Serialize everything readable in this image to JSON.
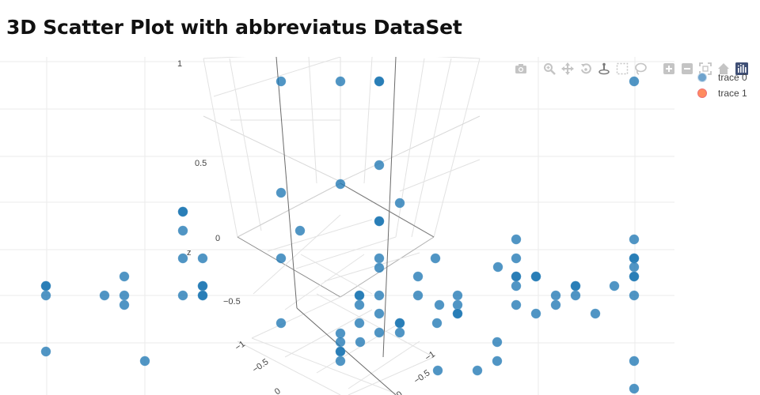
{
  "page": {
    "title": "3D Scatter Plot with abbreviatus DataSet"
  },
  "toolbar": {
    "icons": [
      "camera-icon",
      "zoom-icon",
      "pan-icon",
      "orbit-rotation-icon",
      "turntable-rotation-icon",
      "box-select-icon",
      "lasso-select-icon",
      "zoom-in-icon",
      "zoom-out-icon",
      "autoscale-icon",
      "reset-axes-icon",
      "plotly-logo"
    ]
  },
  "legend": {
    "items": [
      {
        "label": "trace 0",
        "color": "#1f77b4"
      },
      {
        "label": "trace 1",
        "color": "#ff7f0e"
      }
    ]
  },
  "chart_data": {
    "type": "scatter",
    "subtype": "scatter3d",
    "title": "3D Scatter Plot with abbreviatus DataSet",
    "zlabel": "z",
    "z_ticks": [
      "−0.5",
      "0",
      "0.5",
      "1"
    ],
    "x_ticks": [
      "−1",
      "−0.5",
      "0"
    ],
    "y_ticks": [
      "−1",
      "−0.5",
      "0"
    ],
    "legend_position": "top-right",
    "series": [
      {
        "name": "trace 0",
        "color": "#1f77b4"
      },
      {
        "name": "trace 1",
        "color": "#ff7f0e"
      }
    ]
  }
}
